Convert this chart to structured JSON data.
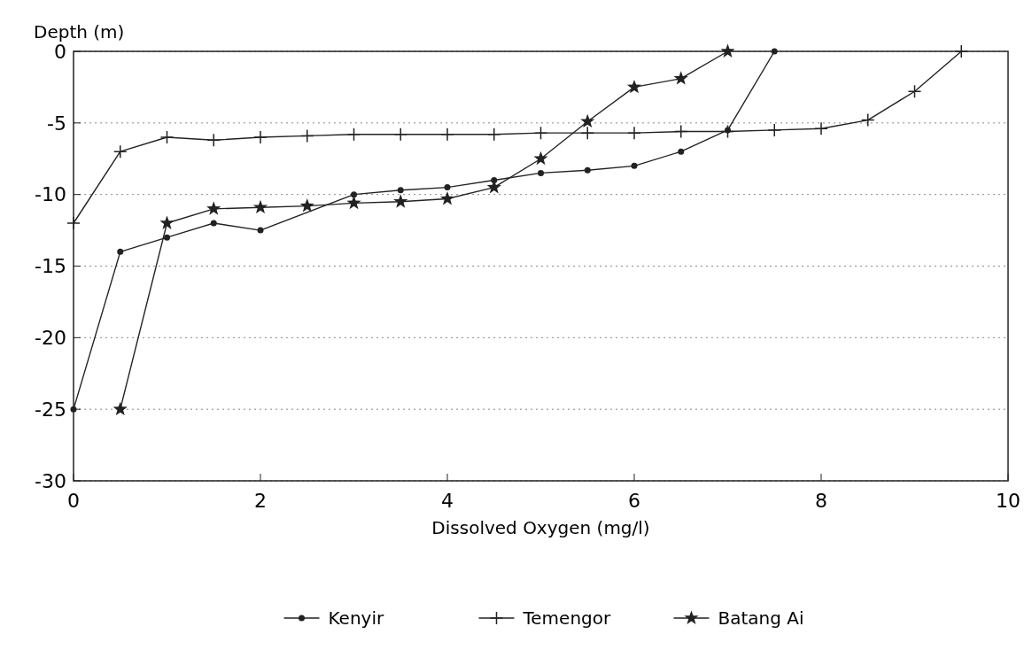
{
  "chart_data": {
    "type": "line",
    "xlabel": "Dissolved Oxygen (mg/l)",
    "ylabel": "Depth (m)",
    "xlim": [
      0,
      10
    ],
    "xticks": [
      0,
      2,
      4,
      6,
      8,
      10
    ],
    "ylim": [
      -30,
      0
    ],
    "yticks": [
      -30,
      -25,
      -20,
      -15,
      -10,
      -5,
      0
    ],
    "grid": "y",
    "legend": "bottom",
    "series": [
      {
        "name": "Kenyir",
        "color": "#222222",
        "marker": "circle",
        "x": [
          0,
          0.5,
          1,
          1.5,
          2,
          3,
          3.5,
          4,
          4.5,
          5,
          5.5,
          6,
          6.5,
          7,
          7.5
        ],
        "values": [
          -25,
          -14,
          -13,
          -12,
          -12.5,
          -10,
          -9.7,
          -9.5,
          -9,
          -8.5,
          -8.3,
          -8,
          -7,
          -5.5,
          0
        ]
      },
      {
        "name": "Temengor",
        "color": "#222222",
        "marker": "cross",
        "x": [
          0,
          0.5,
          1,
          1.5,
          2,
          2.5,
          3,
          3.5,
          4,
          4.5,
          5,
          5.5,
          6,
          6.5,
          7,
          7.5,
          8,
          8.5,
          9,
          9.5
        ],
        "values": [
          -12,
          -7,
          -6,
          -6.2,
          -6,
          -5.9,
          -5.8,
          -5.8,
          -5.8,
          -5.8,
          -5.7,
          -5.7,
          -5.7,
          -5.6,
          -5.6,
          -5.5,
          -5.4,
          -4.8,
          -2.8,
          0
        ]
      },
      {
        "name": "Batang Ai",
        "color": "#222222",
        "marker": "star",
        "x": [
          0.5,
          1,
          1.5,
          2,
          2.5,
          3,
          3.5,
          4,
          4.5,
          5,
          5.5,
          6,
          6.5,
          7
        ],
        "values": [
          -25,
          -12,
          -11,
          -10.9,
          -10.8,
          -10.6,
          -10.5,
          -10.3,
          -9.5,
          -7.5,
          -4.9,
          -2.5,
          -1.9,
          0
        ]
      }
    ]
  }
}
